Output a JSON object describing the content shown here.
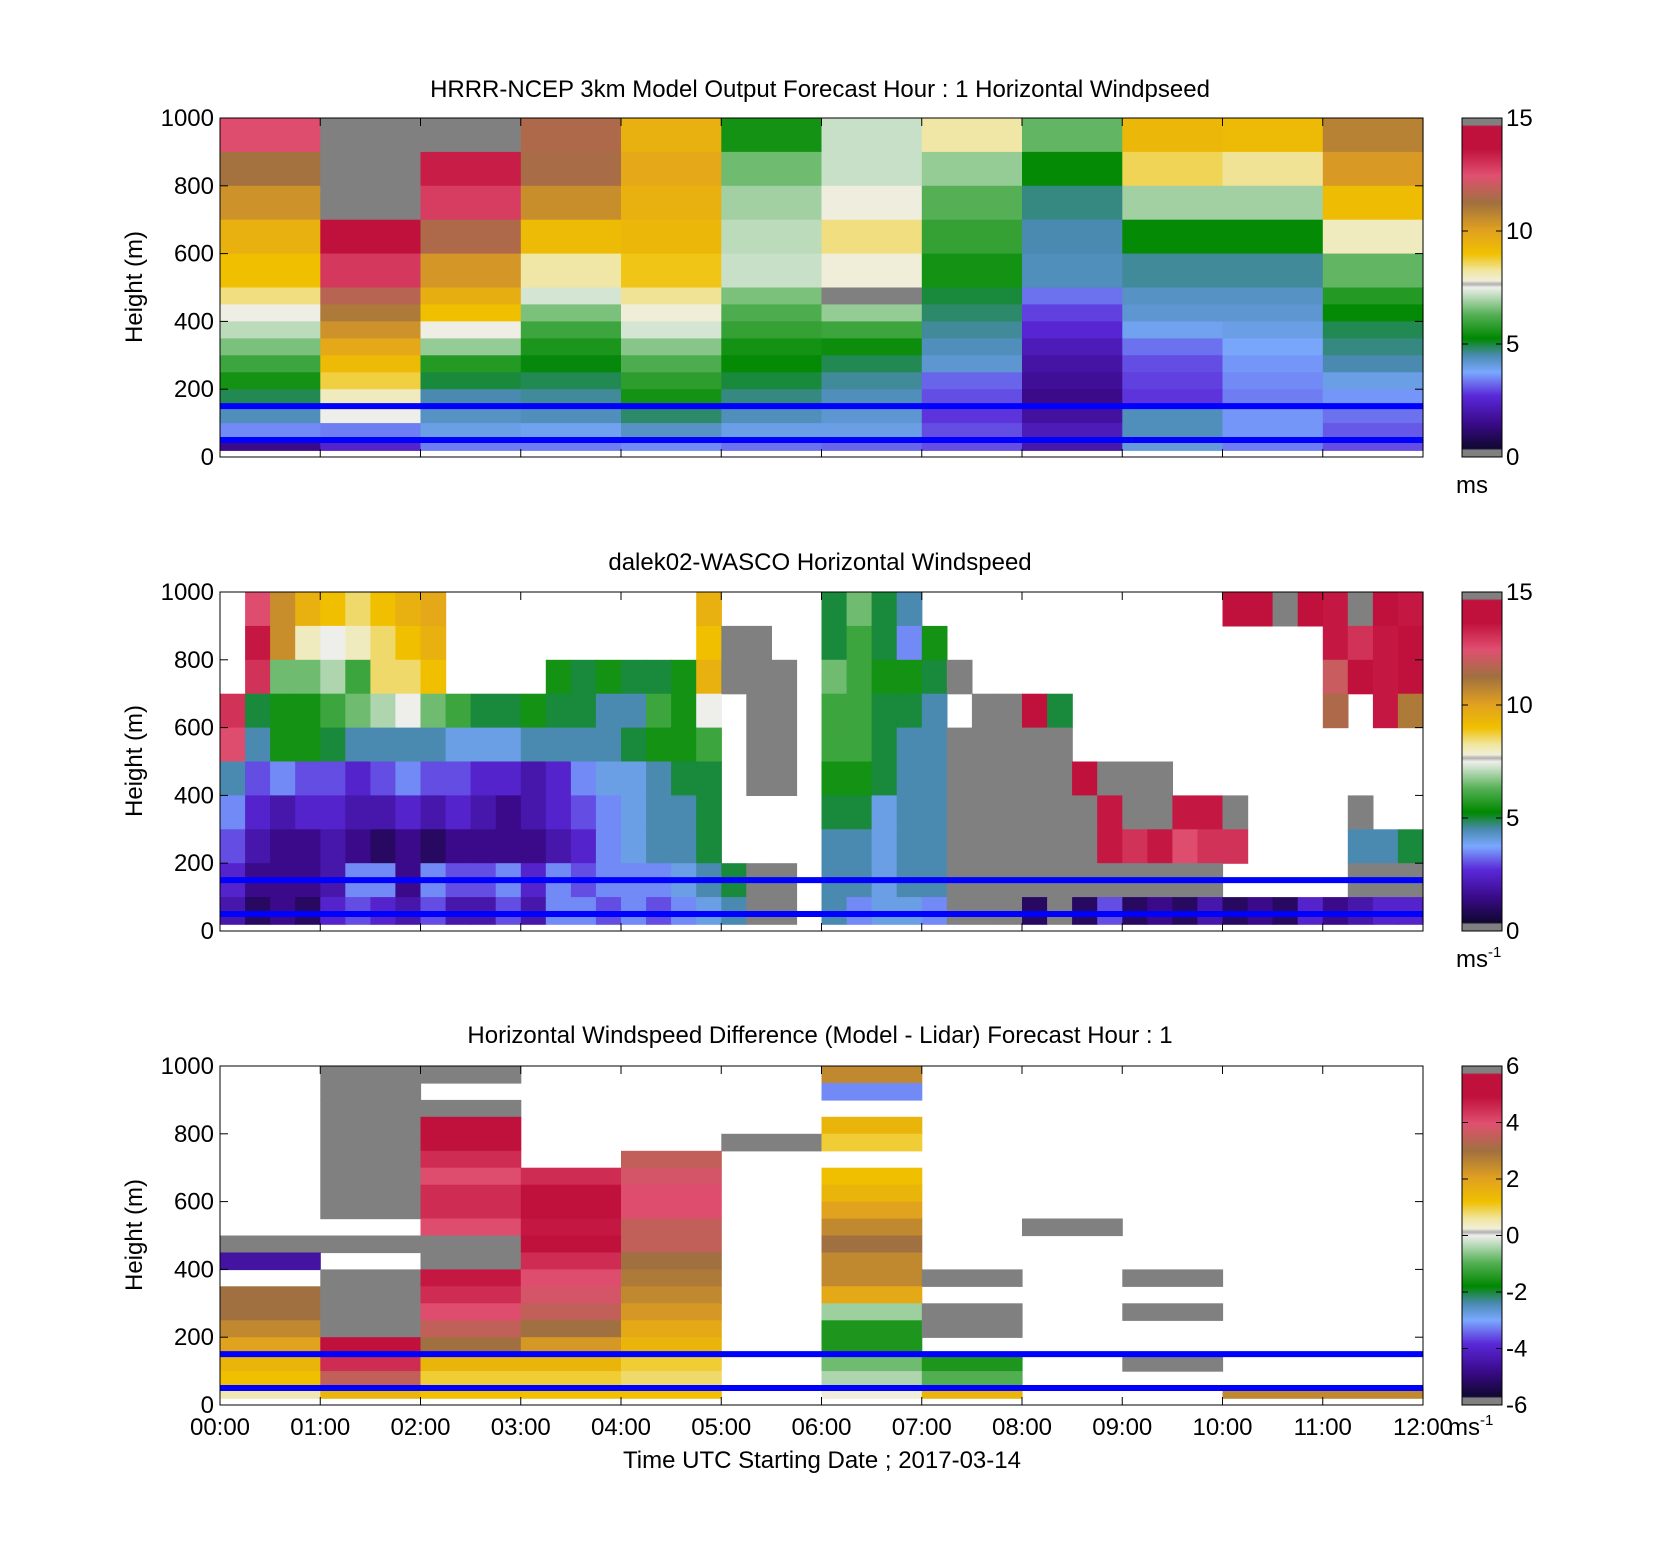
{
  "figure": {
    "xlabel": "Time UTC  Starting Date ; 2017-03-14",
    "x_ticks": [
      "00:00",
      "01:00",
      "02:00",
      "03:00",
      "04:00",
      "05:00",
      "06:00",
      "07:00",
      "08:00",
      "09:00",
      "10:00",
      "11:00",
      "12:00"
    ],
    "y_ticks": [
      "0",
      "200",
      "400",
      "600",
      "800",
      "1000"
    ],
    "line_color": "#0000ff",
    "reference_heights_m": [
      50,
      150
    ]
  },
  "chart_data": [
    {
      "type": "heatmap",
      "title": "HRRR-NCEP 3km Model Output   Forecast Hour : 1 Horizontal Windpseed",
      "ylabel": "Height (m)",
      "xlim": [
        "00:00",
        "12:00"
      ],
      "ylim": [
        0,
        1000
      ],
      "colorbar": {
        "min": 0,
        "max": 15,
        "ticks": [
          "0",
          "5",
          "10",
          "15"
        ],
        "unit": "ms",
        "unit_sup": ""
      },
      "x_hours": [
        0,
        1,
        2,
        3,
        4,
        5,
        6,
        7,
        8,
        9,
        10,
        11,
        12
      ],
      "height_bands_m": [
        [
          900,
          1000
        ],
        [
          800,
          900
        ],
        [
          700,
          800
        ],
        [
          600,
          700
        ],
        [
          500,
          600
        ],
        [
          450,
          500
        ],
        [
          400,
          450
        ],
        [
          350,
          400
        ],
        [
          300,
          350
        ],
        [
          250,
          300
        ],
        [
          200,
          250
        ],
        [
          150,
          200
        ],
        [
          100,
          150
        ],
        [
          50,
          100
        ],
        [
          20,
          50
        ]
      ],
      "values": [
        [
          12.5,
          15,
          15,
          11.5,
          9.5,
          5.5,
          7.2,
          8.2,
          6.4,
          9.3,
          9.2,
          10.8
        ],
        [
          11.2,
          15,
          13.4,
          11.4,
          9.8,
          6.5,
          7.2,
          6.8,
          5.3,
          8.6,
          8.3,
          10.2
        ],
        [
          10.4,
          15,
          12.8,
          10.5,
          9.5,
          6.9,
          7.7,
          6.3,
          4.7,
          6.9,
          6.9,
          9.1
        ],
        [
          9.5,
          13.8,
          11.5,
          9.2,
          9.3,
          7.1,
          8.4,
          5.9,
          4.5,
          5.3,
          5.3,
          8.0
        ],
        [
          9.0,
          12.9,
          10.3,
          8.2,
          8.9,
          7.2,
          7.8,
          5.5,
          4.4,
          4.6,
          4.6,
          6.4
        ],
        [
          8.4,
          11.7,
          9.6,
          7.3,
          8.3,
          6.6,
          15,
          5.0,
          3.3,
          4.3,
          4.3,
          5.7
        ],
        [
          7.6,
          11.0,
          9.0,
          6.6,
          7.8,
          6.2,
          6.8,
          4.8,
          2.9,
          4.2,
          4.2,
          5.3
        ],
        [
          7.1,
          10.4,
          7.6,
          6.0,
          7.3,
          5.9,
          6.0,
          4.6,
          2.6,
          3.9,
          4.0,
          4.9
        ],
        [
          6.6,
          9.8,
          6.8,
          5.6,
          6.7,
          5.5,
          5.4,
          4.4,
          2.2,
          3.3,
          3.8,
          4.7
        ],
        [
          6.0,
          9.2,
          5.7,
          5.2,
          6.2,
          5.3,
          4.9,
          4.2,
          1.9,
          3.0,
          3.6,
          4.5
        ],
        [
          5.5,
          8.7,
          5.0,
          4.9,
          5.8,
          5.0,
          4.6,
          3.2,
          1.7,
          2.9,
          3.5,
          4.0
        ],
        [
          4.9,
          8.0,
          4.5,
          4.6,
          5.5,
          4.7,
          4.4,
          3.0,
          1.5,
          2.8,
          3.4,
          3.6
        ],
        [
          4.4,
          7.5,
          4.3,
          4.4,
          4.8,
          4.4,
          4.2,
          2.8,
          1.8,
          4.4,
          3.6,
          3.3
        ],
        [
          3.5,
          3.4,
          4.0,
          3.9,
          4.3,
          4.0,
          4.0,
          3.0,
          2.2,
          4.4,
          3.6,
          3.1
        ],
        [
          1.5,
          2.5,
          3.4,
          3.4,
          3.5,
          3.3,
          3.2,
          3.0,
          2.0,
          4.1,
          3.4,
          3.0
        ]
      ]
    },
    {
      "type": "heatmap",
      "title": "dalek02-WASCO  Horizontal Windspeed",
      "ylabel": "Height (m)",
      "xlim": [
        "00:00",
        "12:00"
      ],
      "ylim": [
        0,
        1000
      ],
      "colorbar": {
        "min": 0,
        "max": 15,
        "ticks": [
          "0",
          "5",
          "10",
          "15"
        ],
        "unit": "ms",
        "unit_sup": "-1"
      },
      "x_hours": [
        0,
        0.25,
        0.5,
        0.75,
        1,
        1.25,
        1.5,
        1.75,
        2,
        2.25,
        2.5,
        2.75,
        3,
        3.25,
        3.5,
        3.75,
        4,
        4.25,
        4.5,
        4.75,
        5,
        5.25,
        5.5,
        5.75,
        6,
        6.25,
        6.5,
        6.75,
        7,
        7.25,
        7.5,
        7.75,
        8,
        8.25,
        8.5,
        8.75,
        9,
        9.25,
        9.5,
        9.75,
        10,
        10.25,
        10.5,
        10.75,
        11,
        11.25,
        11.5,
        11.75,
        12
      ],
      "height_bands_m": [
        [
          900,
          1000
        ],
        [
          800,
          900
        ],
        [
          700,
          800
        ],
        [
          600,
          700
        ],
        [
          500,
          600
        ],
        [
          400,
          500
        ],
        [
          300,
          400
        ],
        [
          200,
          300
        ],
        [
          100,
          200
        ],
        [
          20,
          100
        ]
      ],
      "values": [
        [
          null,
          12.5,
          10.5,
          9.5,
          9.0,
          8.5,
          9.0,
          9.5,
          9.8,
          null,
          null,
          null,
          null,
          null,
          null,
          null,
          null,
          null,
          null,
          9.5,
          null,
          null,
          null,
          null,
          5.0,
          6.5,
          5.0,
          4.5,
          null,
          null,
          null,
          null,
          null,
          null,
          null,
          null,
          null,
          null,
          null,
          null,
          14.0,
          14.5,
          15,
          14.0,
          13.5,
          15,
          14.0,
          13.5
        ],
        [
          null,
          13.5,
          10.5,
          8.0,
          7.5,
          8.0,
          8.5,
          9.0,
          9.5,
          null,
          null,
          null,
          null,
          null,
          null,
          null,
          null,
          null,
          null,
          9.0,
          15,
          15,
          null,
          null,
          5.0,
          6.0,
          5.0,
          3.5,
          5.5,
          null,
          null,
          null,
          null,
          null,
          null,
          null,
          null,
          null,
          null,
          null,
          null,
          null,
          null,
          null,
          13.5,
          13.0,
          13.5,
          14.0
        ],
        [
          null,
          13.0,
          6.5,
          6.5,
          7.0,
          6.0,
          8.5,
          8.5,
          9.0,
          null,
          null,
          null,
          null,
          5.5,
          5.0,
          5.5,
          5.0,
          5.0,
          5.5,
          9.5,
          15,
          15,
          15,
          null,
          6.5,
          6.0,
          5.5,
          5.5,
          5.0,
          15,
          null,
          null,
          null,
          null,
          null,
          null,
          null,
          null,
          null,
          null,
          null,
          null,
          null,
          null,
          12.0,
          14.0,
          13.5,
          14.5
        ],
        [
          13.0,
          5.0,
          5.5,
          5.5,
          6.0,
          6.5,
          7.0,
          7.5,
          6.5,
          6.0,
          5.0,
          5.0,
          5.5,
          5.0,
          5.0,
          4.5,
          4.5,
          6.0,
          5.5,
          7.5,
          null,
          15,
          15,
          null,
          6.0,
          6.0,
          5.0,
          5.0,
          4.5,
          null,
          15,
          15,
          14.0,
          5.0,
          null,
          null,
          null,
          null,
          null,
          null,
          null,
          null,
          null,
          null,
          11.5,
          null,
          13.5,
          11.0
        ],
        [
          12.5,
          4.5,
          5.5,
          5.5,
          5.0,
          4.5,
          4.5,
          4.5,
          4.5,
          4.0,
          4.0,
          4.0,
          4.5,
          4.5,
          4.5,
          4.5,
          5.0,
          5.5,
          5.5,
          6.0,
          null,
          15,
          15,
          null,
          6.0,
          6.0,
          5.0,
          4.5,
          4.5,
          15,
          15,
          15,
          15,
          15,
          null,
          null,
          null,
          null,
          null,
          null,
          null,
          null,
          null,
          null,
          null,
          null,
          null,
          null
        ],
        [
          4.5,
          3.0,
          3.5,
          3.0,
          3.0,
          2.5,
          3.0,
          3.5,
          3.0,
          3.0,
          2.5,
          2.5,
          2.0,
          2.5,
          3.5,
          4.0,
          4.0,
          4.5,
          5.0,
          5.0,
          null,
          15,
          15,
          null,
          5.5,
          5.5,
          5.0,
          4.5,
          4.5,
          15,
          15,
          15,
          15,
          15,
          14.0,
          15,
          15,
          15,
          null,
          null,
          null,
          null,
          null,
          null,
          null,
          null,
          null,
          null
        ],
        [
          3.5,
          2.5,
          2.0,
          2.5,
          2.5,
          2.0,
          2.0,
          2.5,
          2.0,
          2.5,
          2.0,
          1.5,
          2.0,
          2.5,
          3.0,
          3.5,
          4.0,
          4.5,
          4.5,
          5.0,
          null,
          null,
          null,
          null,
          5.0,
          5.0,
          4.0,
          4.5,
          4.5,
          15,
          15,
          15,
          15,
          15,
          15,
          13.5,
          15,
          15,
          13.5,
          13.5,
          15,
          null,
          null,
          null,
          null,
          15,
          null,
          null
        ],
        [
          3.0,
          2.0,
          1.5,
          1.5,
          2.0,
          1.5,
          1.0,
          1.5,
          1.0,
          1.5,
          1.5,
          1.5,
          1.5,
          2.0,
          2.5,
          3.5,
          4.0,
          4.5,
          4.5,
          5.0,
          null,
          null,
          null,
          null,
          4.5,
          4.5,
          4.0,
          4.5,
          4.5,
          15,
          15,
          15,
          15,
          15,
          15,
          13.5,
          13.0,
          13.5,
          12.5,
          13.0,
          13.0,
          null,
          null,
          null,
          null,
          4.5,
          4.5,
          5.0
        ],
        [
          2.5,
          1.5,
          1.5,
          1.5,
          2.0,
          3.5,
          3.5,
          1.5,
          3.5,
          3.0,
          3.0,
          3.5,
          2.5,
          3.5,
          3.0,
          3.5,
          3.5,
          3.5,
          4.0,
          4.5,
          5.0,
          15,
          15,
          null,
          4.5,
          4.5,
          4.0,
          4.5,
          4.5,
          15,
          15,
          15,
          15,
          15,
          15,
          15,
          15,
          15,
          15,
          15,
          null,
          null,
          null,
          null,
          null,
          15,
          15,
          15
        ],
        [
          2.0,
          1.0,
          1.5,
          1.0,
          2.5,
          3.0,
          2.5,
          2.0,
          3.0,
          2.0,
          2.0,
          3.0,
          2.0,
          3.5,
          3.5,
          3.0,
          3.5,
          3.0,
          3.5,
          4.0,
          4.5,
          15,
          15,
          null,
          4.5,
          3.5,
          4.0,
          4.0,
          3.5,
          15,
          15,
          15,
          1.0,
          15,
          1.0,
          3.0,
          1.0,
          1.5,
          1.0,
          2.0,
          1.0,
          1.5,
          1.0,
          2.5,
          1.5,
          2.0,
          2.5,
          2.5
        ]
      ]
    },
    {
      "type": "heatmap",
      "title": "Horizontal Windspeed Difference (Model - Lidar) Forecast Hour : 1",
      "ylabel": "Height (m)",
      "xlim": [
        "00:00",
        "12:00"
      ],
      "ylim": [
        0,
        1000
      ],
      "colorbar": {
        "min": -6,
        "max": 6,
        "ticks": [
          "-6",
          "-4",
          "-2",
          "0",
          "2",
          "4",
          "6"
        ],
        "unit": "ms",
        "unit_sup": "-1"
      },
      "x_hours": [
        0,
        1,
        2,
        3,
        4,
        5,
        6,
        7,
        8,
        9,
        10,
        11,
        12
      ],
      "height_bands_m": [
        [
          950,
          1000
        ],
        [
          900,
          950
        ],
        [
          850,
          900
        ],
        [
          800,
          850
        ],
        [
          750,
          800
        ],
        [
          700,
          750
        ],
        [
          650,
          700
        ],
        [
          600,
          650
        ],
        [
          550,
          600
        ],
        [
          500,
          550
        ],
        [
          450,
          500
        ],
        [
          400,
          450
        ],
        [
          350,
          400
        ],
        [
          300,
          350
        ],
        [
          250,
          300
        ],
        [
          200,
          250
        ],
        [
          150,
          200
        ],
        [
          100,
          150
        ],
        [
          50,
          100
        ],
        [
          20,
          50
        ]
      ],
      "values": [
        [
          null,
          6,
          6,
          null,
          null,
          null,
          2.5,
          null,
          null,
          null,
          null,
          null
        ],
        [
          null,
          6,
          null,
          null,
          null,
          null,
          -3.2,
          null,
          null,
          null,
          null,
          null
        ],
        [
          null,
          6,
          6,
          null,
          null,
          null,
          null,
          null,
          null,
          null,
          null,
          null
        ],
        [
          null,
          6,
          5.2,
          null,
          null,
          null,
          1.5,
          null,
          null,
          null,
          null,
          null
        ],
        [
          null,
          6,
          5.5,
          null,
          null,
          6,
          1.0,
          null,
          null,
          null,
          null,
          null
        ],
        [
          null,
          6,
          4.5,
          null,
          3.5,
          null,
          null,
          null,
          null,
          null,
          null,
          null
        ],
        [
          null,
          6,
          4.0,
          4.5,
          3.8,
          null,
          1.2,
          null,
          null,
          null,
          null,
          null
        ],
        [
          null,
          6,
          4.5,
          5.0,
          4.0,
          null,
          1.5,
          null,
          null,
          null,
          null,
          null
        ],
        [
          null,
          6,
          4.5,
          5.0,
          4.0,
          null,
          2.0,
          null,
          null,
          null,
          null,
          null
        ],
        [
          null,
          null,
          4.0,
          4.8,
          3.5,
          null,
          2.5,
          null,
          6,
          null,
          null,
          null
        ],
        [
          6,
          6,
          6,
          5.0,
          3.5,
          null,
          3.0,
          null,
          null,
          null,
          null,
          null
        ],
        [
          -4.5,
          null,
          6,
          4.5,
          3.0,
          null,
          2.5,
          null,
          null,
          null,
          null,
          null
        ],
        [
          null,
          6,
          4.8,
          4.0,
          2.8,
          null,
          2.5,
          6,
          null,
          6,
          null,
          null
        ],
        [
          3.0,
          6,
          4.5,
          3.8,
          2.5,
          null,
          1.8,
          null,
          null,
          null,
          null,
          null
        ],
        [
          3.0,
          6,
          4.0,
          3.5,
          2.2,
          null,
          -0.5,
          6,
          null,
          6,
          null,
          null
        ],
        [
          2.5,
          6,
          3.5,
          3.0,
          1.8,
          null,
          -1.5,
          6,
          null,
          null,
          null,
          null
        ],
        [
          2.0,
          5.0,
          3.0,
          2.2,
          1.5,
          null,
          -1.5,
          null,
          null,
          null,
          null,
          null
        ],
        [
          1.5,
          4.5,
          1.5,
          1.5,
          1.0,
          null,
          -0.8,
          -1.5,
          null,
          6,
          null,
          null
        ],
        [
          1.2,
          3.5,
          1.0,
          1.0,
          0.8,
          null,
          -0.4,
          -1.0,
          null,
          null,
          null,
          null
        ],
        [
          0.5,
          1.5,
          1.2,
          1.2,
          1.2,
          null,
          0.2,
          1.5,
          null,
          null,
          2.5,
          2.5
        ]
      ]
    }
  ]
}
